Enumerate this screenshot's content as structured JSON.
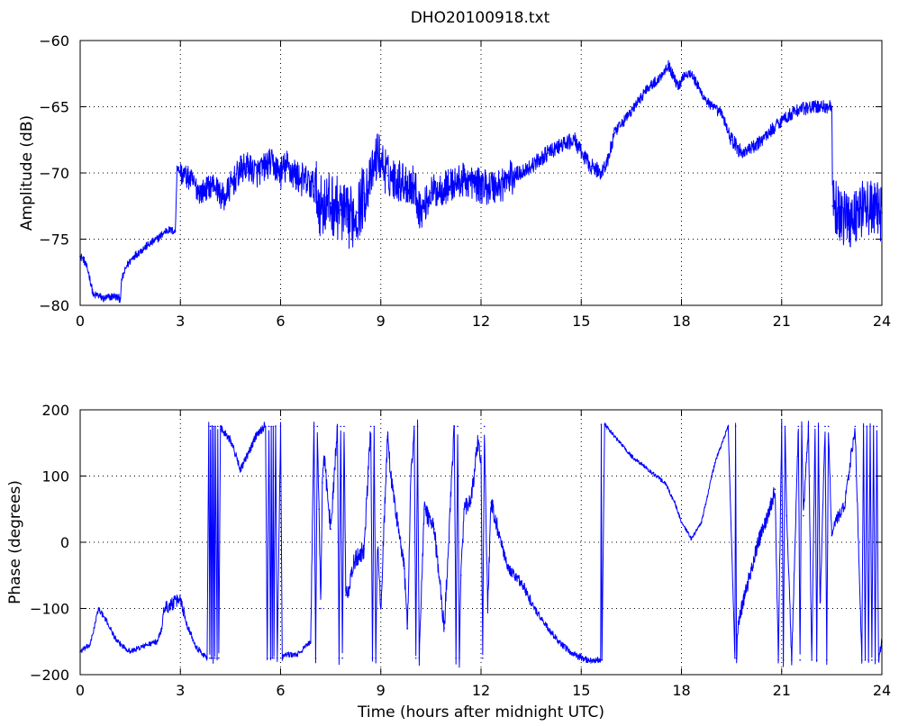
{
  "figure": {
    "title": "DHO20100918.txt",
    "line_color": "#0000ff",
    "background": "#ffffff"
  },
  "chart_data": [
    {
      "type": "line",
      "title": "DHO20100918.txt",
      "xlabel": "",
      "ylabel": "Amplitude (dB)",
      "xlim": [
        0,
        24
      ],
      "ylim": [
        -80,
        -60
      ],
      "xticks": [
        0,
        3,
        6,
        9,
        12,
        15,
        18,
        21,
        24
      ],
      "yticks": [
        -80,
        -75,
        -70,
        -65,
        -60
      ],
      "grid": true,
      "noise": [
        [
          0,
          3,
          0.3
        ],
        [
          3,
          4.2,
          0.9
        ],
        [
          4.2,
          6,
          1.1
        ],
        [
          6,
          7,
          1.3
        ],
        [
          7,
          8.6,
          2.4
        ],
        [
          8.6,
          9.2,
          1.8
        ],
        [
          9.2,
          10.2,
          1.6
        ],
        [
          10.2,
          12,
          1.3
        ],
        [
          12,
          13,
          1.4
        ],
        [
          13,
          15,
          0.6
        ],
        [
          15,
          16,
          0.6
        ],
        [
          16,
          19.4,
          0.4
        ],
        [
          19.4,
          19.8,
          0.6
        ],
        [
          19.8,
          22.5,
          0.5
        ],
        [
          22.5,
          24,
          2.2
        ]
      ],
      "series": [
        {
          "x": [
            0,
            0.1,
            0.25,
            0.4,
            0.5,
            0.7,
            1.0,
            1.2,
            1.25,
            1.4,
            1.6,
            2.0,
            2.3,
            2.6,
            2.85,
            2.9,
            3.0,
            3.3,
            3.6,
            4.0,
            4.3,
            4.5,
            4.8,
            5.0,
            5.3,
            5.7,
            6.0,
            6.2,
            6.5,
            7.0,
            7.2,
            7.5,
            7.8,
            8.0,
            8.3,
            8.5,
            8.7,
            8.9,
            9.0,
            9.2,
            9.5,
            10.0,
            10.2,
            10.5,
            11.0,
            11.5,
            12.0,
            12.5,
            13.0,
            13.5,
            14.0,
            14.5,
            14.8,
            15.0,
            15.3,
            15.6,
            15.8,
            16.0,
            16.3,
            16.6,
            17.0,
            17.3,
            17.6,
            17.9,
            18.1,
            18.3,
            18.6,
            18.9,
            19.2,
            19.5,
            19.8,
            20.2,
            20.6,
            21.0,
            21.5,
            22.0,
            22.5,
            22.52,
            22.7,
            23.0,
            23.5,
            24.0
          ],
          "values": [
            -76.3,
            -76.5,
            -77.5,
            -79.3,
            -79.2,
            -79.5,
            -79.3,
            -79.5,
            -78.0,
            -77.0,
            -76.3,
            -75.5,
            -75.0,
            -74.3,
            -74.4,
            -69.5,
            -70.0,
            -70.5,
            -71.5,
            -70.8,
            -72.0,
            -71.0,
            -69.8,
            -69.5,
            -70.0,
            -69.2,
            -70.0,
            -69.5,
            -70.3,
            -71.0,
            -72.5,
            -72.3,
            -72.8,
            -73.5,
            -73.0,
            -71.5,
            -70.5,
            -68.5,
            -69.0,
            -70.2,
            -70.5,
            -71.0,
            -73.0,
            -71.5,
            -71.0,
            -70.5,
            -71.0,
            -71.0,
            -70.2,
            -69.5,
            -68.5,
            -67.8,
            -67.5,
            -68.5,
            -69.5,
            -70.0,
            -69.0,
            -67.0,
            -66.0,
            -65.0,
            -63.5,
            -63.0,
            -61.8,
            -63.5,
            -62.5,
            -62.5,
            -64.0,
            -65.0,
            -65.5,
            -67.5,
            -68.5,
            -68.0,
            -67.0,
            -66.0,
            -65.2,
            -65.0,
            -65.0,
            -72.5,
            -73.0,
            -73.5,
            -72.5,
            -73.0
          ]
        }
      ]
    },
    {
      "type": "line",
      "title": "",
      "xlabel": "Time (hours after midnight UTC)",
      "ylabel": "Phase (degrees)",
      "xlim": [
        0,
        24
      ],
      "ylim": [
        -200,
        200
      ],
      "xticks": [
        0,
        3,
        6,
        9,
        12,
        15,
        18,
        21,
        24
      ],
      "yticks": [
        -200,
        -100,
        0,
        100,
        200
      ],
      "grid": true,
      "noise": [
        [
          0,
          2.5,
          4
        ],
        [
          2.5,
          3.1,
          10
        ],
        [
          3.1,
          3.8,
          5
        ],
        [
          3.8,
          4.2,
          8
        ],
        [
          4.2,
          5.5,
          6
        ],
        [
          5.5,
          6.0,
          8
        ],
        [
          6.0,
          6.9,
          4
        ],
        [
          6.9,
          12.5,
          14
        ],
        [
          12.5,
          13.5,
          8
        ],
        [
          13.5,
          15.6,
          5
        ],
        [
          15.6,
          19.6,
          3
        ],
        [
          19.6,
          21,
          12
        ],
        [
          21,
          23.3,
          10
        ],
        [
          23.3,
          24,
          8
        ]
      ],
      "series": [
        {
          "x": [
            0,
            0.3,
            0.55,
            0.8,
            1.1,
            1.5,
            2.0,
            2.3,
            2.45,
            2.5,
            2.7,
            3.0,
            3.2,
            3.5,
            3.8,
            3.85,
            3.88,
            3.9,
            3.93,
            3.95,
            3.98,
            4.0,
            4.03,
            4.05,
            4.1,
            4.12,
            4.15,
            4.2,
            4.22,
            4.25,
            4.5,
            4.8,
            5.0,
            5.3,
            5.55,
            5.6,
            5.65,
            5.7,
            5.72,
            5.75,
            5.78,
            5.8,
            5.85,
            5.9,
            6.0,
            6.05,
            6.1,
            6.5,
            6.9,
            7.0,
            7.05,
            7.1,
            7.15,
            7.2,
            7.25,
            7.3,
            7.5,
            7.7,
            7.75,
            7.8,
            7.85,
            7.9,
            7.95,
            8.0,
            8.2,
            8.5,
            8.7,
            8.75,
            8.8,
            8.85,
            8.9,
            9.0,
            9.2,
            9.3,
            9.5,
            9.7,
            9.8,
            9.9,
            10.0,
            10.05,
            10.1,
            10.15,
            10.3,
            10.6,
            10.9,
            11.2,
            11.25,
            11.3,
            11.35,
            11.4,
            11.5,
            11.7,
            11.9,
            12.0,
            12.05,
            12.1,
            12.2,
            12.3,
            12.5,
            12.8,
            13.2,
            13.6,
            14.0,
            14.4,
            14.8,
            15.2,
            15.55,
            15.58,
            15.6,
            15.62,
            15.7,
            16.0,
            16.5,
            17.0,
            17.5,
            17.8,
            18.0,
            18.3,
            18.6,
            19.0,
            19.4,
            19.6,
            19.62,
            19.65,
            19.7,
            20.0,
            20.3,
            20.6,
            20.8,
            20.9,
            21.0,
            21.05,
            21.1,
            21.15,
            21.3,
            21.5,
            21.55,
            21.6,
            21.65,
            21.8,
            21.9,
            22.0,
            22.05,
            22.1,
            22.15,
            22.3,
            22.35,
            22.4,
            22.5,
            22.7,
            22.9,
            23.0,
            23.2,
            23.4,
            23.45,
            23.5,
            23.55,
            23.6,
            23.65,
            23.7,
            23.75,
            23.8,
            23.85,
            23.9,
            24.0
          ],
          "values": [
            -165,
            -155,
            -100,
            -120,
            -150,
            -165,
            -155,
            -150,
            -130,
            -100,
            -95,
            -85,
            -125,
            -160,
            -175,
            175,
            -175,
            175,
            -175,
            175,
            -175,
            175,
            -175,
            175,
            -175,
            175,
            -175,
            175,
            175,
            170,
            155,
            110,
            130,
            165,
            175,
            -175,
            175,
            -175,
            175,
            -175,
            175,
            -175,
            175,
            -175,
            175,
            -175,
            -170,
            -170,
            -150,
            175,
            -175,
            175,
            50,
            -100,
            90,
            130,
            20,
            175,
            -175,
            175,
            -175,
            175,
            -80,
            -80,
            -30,
            -10,
            175,
            -175,
            175,
            -175,
            0,
            -100,
            160,
            100,
            30,
            -40,
            -130,
            100,
            175,
            -175,
            175,
            -175,
            50,
            20,
            -130,
            175,
            -175,
            175,
            -175,
            -50,
            50,
            60,
            150,
            120,
            -175,
            175,
            -100,
            60,
            20,
            -40,
            -60,
            -100,
            -130,
            -155,
            -170,
            -178,
            -178,
            -178,
            178,
            -178,
            178,
            160,
            130,
            110,
            90,
            60,
            30,
            5,
            30,
            120,
            175,
            -175,
            175,
            -175,
            -120,
            -60,
            0,
            40,
            80,
            -178,
            175,
            -178,
            175,
            40,
            -178,
            175,
            -178,
            175,
            40,
            175,
            -178,
            175,
            -178,
            175,
            -100,
            175,
            -178,
            175,
            10,
            40,
            60,
            100,
            175,
            -178,
            175,
            -178,
            175,
            -178,
            175,
            -178,
            175,
            -178,
            175,
            -178,
            -150
          ]
        }
      ]
    }
  ]
}
